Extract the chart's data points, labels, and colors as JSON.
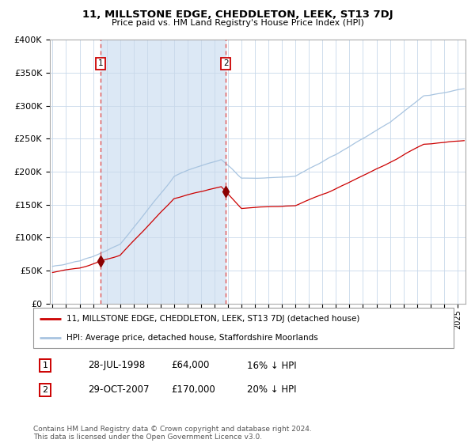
{
  "title": "11, MILLSTONE EDGE, CHEDDLETON, LEEK, ST13 7DJ",
  "subtitle": "Price paid vs. HM Land Registry's House Price Index (HPI)",
  "legend_line1": "11, MILLSTONE EDGE, CHEDDLETON, LEEK, ST13 7DJ (detached house)",
  "legend_line2": "HPI: Average price, detached house, Staffordshire Moorlands",
  "point1_date": "28-JUL-1998",
  "point1_price": "£64,000",
  "point1_hpi": "16% ↓ HPI",
  "point2_date": "29-OCT-2007",
  "point2_price": "£170,000",
  "point2_hpi": "20% ↓ HPI",
  "footer": "Contains HM Land Registry data © Crown copyright and database right 2024.\nThis data is licensed under the Open Government Licence v3.0.",
  "hpi_color": "#a8c4e0",
  "property_color": "#cc0000",
  "point_color": "#8b0000",
  "vline_color": "#dd4444",
  "shade_color": "#dce8f5",
  "bg_color": "#ffffff",
  "grid_color": "#c8d8ea",
  "ylim": [
    0,
    400000
  ],
  "yticks": [
    0,
    50000,
    100000,
    150000,
    200000,
    250000,
    300000,
    350000,
    400000
  ],
  "point1_year": 1998.57,
  "point1_value": 64000,
  "point2_year": 2007.83,
  "point2_value": 170000,
  "xmin": 1995.0,
  "xmax": 2025.5
}
